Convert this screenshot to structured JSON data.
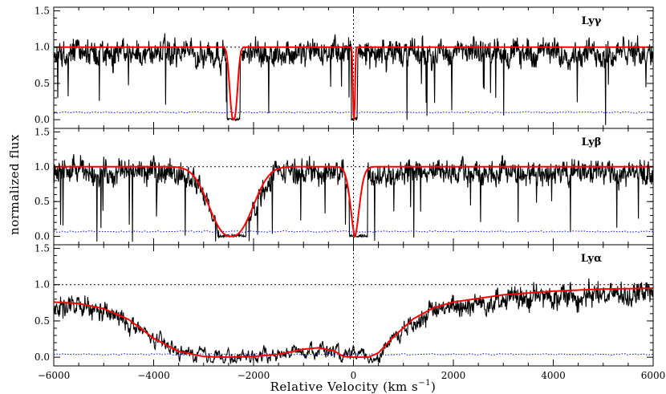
{
  "chart_data": {
    "type": "line",
    "xlabel": "Relative Velocity (km s",
    "xlabel_sup": "−1",
    "xlabel_close": ")",
    "ylabel": "normalized flux",
    "xlim": [
      -6000,
      6000
    ],
    "ylim": [
      -0.12,
      1.55
    ],
    "x_ticks": [
      -6000,
      -4000,
      -2000,
      0,
      2000,
      4000,
      6000
    ],
    "x_tick_labels": [
      "−6000",
      "−4000",
      "−2000",
      "0",
      "2000",
      "4000",
      "6000"
    ],
    "y_ticks": [
      0.0,
      0.5,
      1.0,
      1.5
    ],
    "y_tick_labels": [
      "0.0",
      "0.5",
      "1.0",
      "1.5"
    ],
    "reference_lines": {
      "continuum": 1.0,
      "systemic_velocity": 0
    },
    "colors": {
      "data": "#000000",
      "model": "#ff0000",
      "error": "#0000ff",
      "reference": "#000000"
    },
    "panels": [
      {
        "label": "Lyγ",
        "model_absorbers": [
          {
            "v": -2400,
            "width": 100,
            "power": 2.5
          },
          {
            "v": 10,
            "width": 28,
            "power": 2.5
          }
        ],
        "data_absorption_windows": [
          [
            -2530,
            -2280
          ],
          [
            -45,
            75
          ]
        ],
        "noise_amplitude": 0.35,
        "error_level": 0.1
      },
      {
        "label": "Lyβ",
        "model_absorbers": [
          {
            "v": -2450,
            "width": 560,
            "power": 2.4
          },
          {
            "v": 30,
            "width": 125,
            "power": 1.7
          }
        ],
        "data_absorption_windows": [
          [
            -2700,
            -2150
          ],
          [
            -80,
            280
          ]
        ],
        "noise_amplitude": 0.33,
        "error_level": 0.07
      },
      {
        "label": "Lyα",
        "model_profile": [
          [
            -6000,
            0.76
          ],
          [
            -5500,
            0.74
          ],
          [
            -5000,
            0.67
          ],
          [
            -4500,
            0.52
          ],
          [
            -4000,
            0.26
          ],
          [
            -3500,
            0.08
          ],
          [
            -3000,
            0.01
          ],
          [
            -2500,
            0.0
          ],
          [
            -2000,
            0.01
          ],
          [
            -1500,
            0.04
          ],
          [
            -1000,
            0.11
          ],
          [
            -700,
            0.13
          ],
          [
            -400,
            0.09
          ],
          [
            -200,
            0.01
          ],
          [
            0,
            0.0
          ],
          [
            300,
            0.0
          ],
          [
            500,
            0.06
          ],
          [
            800,
            0.28
          ],
          [
            1200,
            0.53
          ],
          [
            1600,
            0.68
          ],
          [
            2000,
            0.76
          ],
          [
            2500,
            0.81
          ],
          [
            3000,
            0.86
          ],
          [
            4000,
            0.91
          ],
          [
            5000,
            0.94
          ],
          [
            6000,
            0.95
          ]
        ],
        "noise_amplitude": 0.3,
        "error_level": 0.04
      }
    ]
  }
}
